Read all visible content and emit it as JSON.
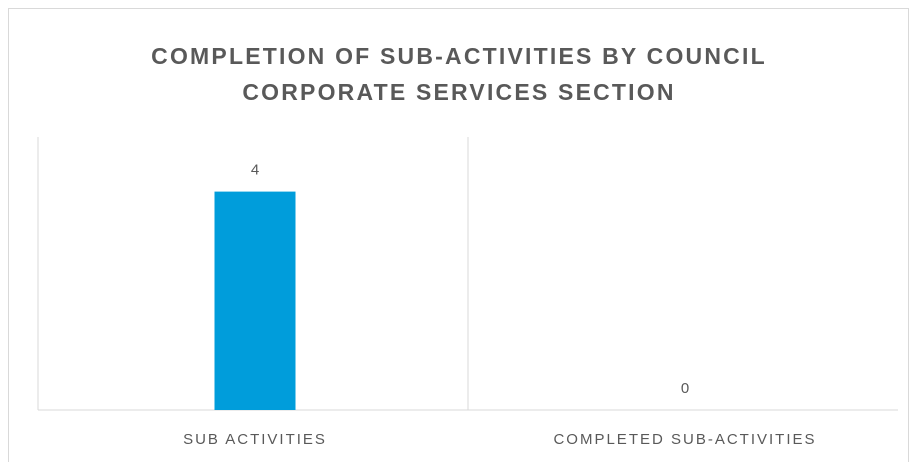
{
  "chart_data": {
    "type": "bar",
    "title_lines": [
      "COMPLETION OF SUB-ACTIVITIES BY COUNCIL",
      "CORPORATE SERVICES SECTION"
    ],
    "categories": [
      "SUB ACTIVITIES",
      "COMPLETED SUB-ACTIVITIES"
    ],
    "values": [
      4,
      0
    ],
    "data_labels": [
      "4",
      "0"
    ],
    "ylim": [
      0,
      5
    ],
    "grid": false,
    "legend": "none",
    "bar_color": "#009ddb",
    "axis_color": "#d9d9d9",
    "text_color": "#595959"
  }
}
